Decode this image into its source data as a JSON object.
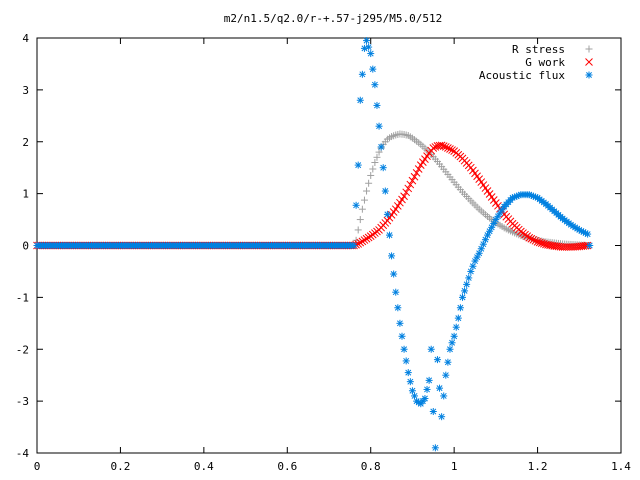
{
  "chart_data": {
    "type": "scatter",
    "title": "m2/n1.5/q2.0/r-+.57-j295/M5.0/512",
    "xlabel": "",
    "ylabel": "",
    "xlim": [
      0,
      1.4
    ],
    "ylim": [
      -4,
      4
    ],
    "xticks": [
      "0",
      "0.2",
      "0.4",
      "0.6",
      "0.8",
      "1",
      "1.2",
      "1.4"
    ],
    "yticks": [
      "4",
      "3",
      "2",
      "1",
      "0",
      "-1",
      "-2",
      "-3",
      "-4"
    ],
    "grid": false,
    "legend_position": "top-right",
    "series": [
      {
        "name": "R stress",
        "marker": "plus",
        "color": "#a0a0a0",
        "points": [
          [
            0.0,
            0
          ],
          [
            0.76,
            0
          ],
          [
            0.765,
            0.1
          ],
          [
            0.77,
            0.3
          ],
          [
            0.78,
            0.7
          ],
          [
            0.79,
            1.05
          ],
          [
            0.8,
            1.35
          ],
          [
            0.81,
            1.6
          ],
          [
            0.82,
            1.8
          ],
          [
            0.83,
            1.95
          ],
          [
            0.84,
            2.05
          ],
          [
            0.85,
            2.1
          ],
          [
            0.86,
            2.13
          ],
          [
            0.87,
            2.15
          ],
          [
            0.88,
            2.14
          ],
          [
            0.89,
            2.12
          ],
          [
            0.9,
            2.07
          ],
          [
            0.92,
            1.95
          ],
          [
            0.94,
            1.8
          ],
          [
            0.96,
            1.62
          ],
          [
            0.98,
            1.42
          ],
          [
            1.0,
            1.22
          ],
          [
            1.02,
            1.03
          ],
          [
            1.04,
            0.86
          ],
          [
            1.06,
            0.7
          ],
          [
            1.08,
            0.56
          ],
          [
            1.1,
            0.44
          ],
          [
            1.12,
            0.34
          ],
          [
            1.14,
            0.26
          ],
          [
            1.16,
            0.19
          ],
          [
            1.18,
            0.14
          ],
          [
            1.2,
            0.1
          ],
          [
            1.22,
            0.07
          ],
          [
            1.24,
            0.05
          ],
          [
            1.26,
            0.03
          ],
          [
            1.28,
            0.02
          ],
          [
            1.3,
            0.01
          ],
          [
            1.32,
            0.0
          ]
        ]
      },
      {
        "name": "G work",
        "marker": "cross",
        "color": "#ff0000",
        "points": [
          [
            0.0,
            0
          ],
          [
            0.76,
            0
          ],
          [
            0.77,
            0.03
          ],
          [
            0.78,
            0.08
          ],
          [
            0.8,
            0.18
          ],
          [
            0.82,
            0.3
          ],
          [
            0.84,
            0.48
          ],
          [
            0.86,
            0.7
          ],
          [
            0.88,
            0.95
          ],
          [
            0.9,
            1.25
          ],
          [
            0.92,
            1.55
          ],
          [
            0.94,
            1.78
          ],
          [
            0.95,
            1.88
          ],
          [
            0.96,
            1.92
          ],
          [
            0.97,
            1.93
          ],
          [
            0.98,
            1.9
          ],
          [
            1.0,
            1.82
          ],
          [
            1.02,
            1.68
          ],
          [
            1.04,
            1.5
          ],
          [
            1.06,
            1.28
          ],
          [
            1.08,
            1.05
          ],
          [
            1.1,
            0.82
          ],
          [
            1.12,
            0.6
          ],
          [
            1.14,
            0.42
          ],
          [
            1.16,
            0.27
          ],
          [
            1.18,
            0.15
          ],
          [
            1.2,
            0.07
          ],
          [
            1.22,
            0.02
          ],
          [
            1.24,
            -0.01
          ],
          [
            1.26,
            -0.03
          ],
          [
            1.28,
            -0.03
          ],
          [
            1.3,
            -0.02
          ],
          [
            1.32,
            0.0
          ]
        ]
      },
      {
        "name": "Acoustic flux",
        "marker": "star",
        "color": "#0080e0",
        "points": [
          [
            0.0,
            0
          ],
          [
            0.76,
            0
          ],
          [
            0.77,
            1.55
          ],
          [
            0.775,
            2.8
          ],
          [
            0.78,
            3.3
          ],
          [
            0.785,
            3.8
          ],
          [
            0.79,
            3.95
          ],
          [
            0.8,
            3.7
          ],
          [
            0.81,
            3.1
          ],
          [
            0.82,
            2.3
          ],
          [
            0.83,
            1.5
          ],
          [
            0.84,
            0.6
          ],
          [
            0.85,
            -0.2
          ],
          [
            0.86,
            -0.9
          ],
          [
            0.87,
            -1.5
          ],
          [
            0.88,
            -2.0
          ],
          [
            0.89,
            -2.45
          ],
          [
            0.9,
            -2.8
          ],
          [
            0.91,
            -3.0
          ],
          [
            0.92,
            -3.05
          ],
          [
            0.93,
            -2.95
          ],
          [
            0.94,
            -2.6
          ],
          [
            0.945,
            -2.0
          ],
          [
            0.95,
            -3.2
          ],
          [
            0.955,
            -3.9
          ],
          [
            0.96,
            -2.2
          ],
          [
            0.97,
            -3.3
          ],
          [
            0.98,
            -2.5
          ],
          [
            0.99,
            -2.0
          ],
          [
            1.0,
            -1.75
          ],
          [
            1.01,
            -1.4
          ],
          [
            1.02,
            -1.0
          ],
          [
            1.03,
            -0.75
          ],
          [
            1.04,
            -0.5
          ],
          [
            1.05,
            -0.3
          ],
          [
            1.06,
            -0.15
          ],
          [
            1.08,
            0.2
          ],
          [
            1.1,
            0.5
          ],
          [
            1.12,
            0.75
          ],
          [
            1.14,
            0.92
          ],
          [
            1.16,
            0.98
          ],
          [
            1.18,
            0.98
          ],
          [
            1.2,
            0.92
          ],
          [
            1.22,
            0.8
          ],
          [
            1.24,
            0.66
          ],
          [
            1.26,
            0.52
          ],
          [
            1.28,
            0.4
          ],
          [
            1.3,
            0.3
          ],
          [
            1.32,
            0.22
          ],
          [
            1.325,
            0.0
          ]
        ]
      }
    ]
  }
}
